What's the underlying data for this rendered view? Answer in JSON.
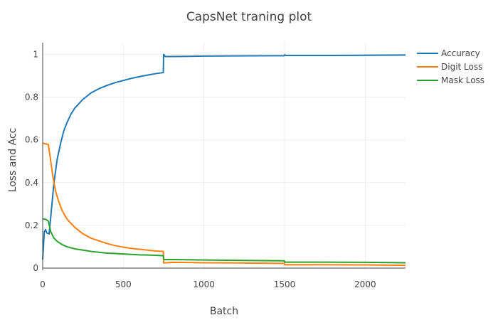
{
  "chart_data": {
    "type": "line",
    "title": "CapsNet traning plot",
    "xlabel": "Batch",
    "ylabel": "Loss and Acc",
    "xlim": [
      0,
      2250
    ],
    "ylim": [
      -0.01,
      1.055
    ],
    "x_ticks": [
      0,
      500,
      1000,
      1500,
      2000
    ],
    "y_ticks": [
      0,
      0.2,
      0.4,
      0.6,
      0.8,
      1
    ],
    "grid": true,
    "legend_position": "top-right",
    "series": [
      {
        "name": "Accuracy",
        "color": "#1f77b4",
        "points": [
          [
            0,
            0.04
          ],
          [
            10,
            0.17
          ],
          [
            18,
            0.18
          ],
          [
            25,
            0.165
          ],
          [
            40,
            0.16
          ],
          [
            55,
            0.28
          ],
          [
            70,
            0.4
          ],
          [
            90,
            0.51
          ],
          [
            110,
            0.58
          ],
          [
            130,
            0.64
          ],
          [
            150,
            0.68
          ],
          [
            175,
            0.72
          ],
          [
            200,
            0.75
          ],
          [
            250,
            0.79
          ],
          [
            300,
            0.82
          ],
          [
            350,
            0.84
          ],
          [
            400,
            0.855
          ],
          [
            450,
            0.868
          ],
          [
            500,
            0.878
          ],
          [
            550,
            0.888
          ],
          [
            600,
            0.896
          ],
          [
            650,
            0.903
          ],
          [
            700,
            0.91
          ],
          [
            748,
            0.915
          ],
          [
            750,
            1.0
          ],
          [
            760,
            0.99
          ],
          [
            780,
            0.99
          ],
          [
            900,
            0.991
          ],
          [
            1000,
            0.992
          ],
          [
            1200,
            0.993
          ],
          [
            1499,
            0.994
          ],
          [
            1500,
            0.998
          ],
          [
            1510,
            0.995
          ],
          [
            1800,
            0.995
          ],
          [
            2000,
            0.996
          ],
          [
            2250,
            0.997
          ]
        ]
      },
      {
        "name": "Digit Loss",
        "color": "#ff7f0e",
        "points": [
          [
            0,
            0.585
          ],
          [
            15,
            0.582
          ],
          [
            35,
            0.578
          ],
          [
            50,
            0.5
          ],
          [
            65,
            0.42
          ],
          [
            80,
            0.36
          ],
          [
            100,
            0.31
          ],
          [
            120,
            0.27
          ],
          [
            150,
            0.23
          ],
          [
            200,
            0.19
          ],
          [
            250,
            0.16
          ],
          [
            300,
            0.14
          ],
          [
            350,
            0.127
          ],
          [
            400,
            0.115
          ],
          [
            450,
            0.105
          ],
          [
            500,
            0.098
          ],
          [
            550,
            0.092
          ],
          [
            600,
            0.088
          ],
          [
            650,
            0.084
          ],
          [
            700,
            0.08
          ],
          [
            748,
            0.078
          ],
          [
            750,
            0.024
          ],
          [
            800,
            0.027
          ],
          [
            1000,
            0.025
          ],
          [
            1200,
            0.024
          ],
          [
            1499,
            0.022
          ],
          [
            1500,
            0.016
          ],
          [
            1700,
            0.016
          ],
          [
            2000,
            0.015
          ],
          [
            2250,
            0.013
          ]
        ]
      },
      {
        "name": "Mask Loss",
        "color": "#2ca02c",
        "points": [
          [
            0,
            0.23
          ],
          [
            20,
            0.228
          ],
          [
            35,
            0.22
          ],
          [
            50,
            0.17
          ],
          [
            70,
            0.14
          ],
          [
            90,
            0.125
          ],
          [
            120,
            0.11
          ],
          [
            150,
            0.1
          ],
          [
            200,
            0.09
          ],
          [
            250,
            0.084
          ],
          [
            300,
            0.078
          ],
          [
            350,
            0.074
          ],
          [
            400,
            0.07
          ],
          [
            450,
            0.068
          ],
          [
            500,
            0.066
          ],
          [
            550,
            0.064
          ],
          [
            600,
            0.062
          ],
          [
            650,
            0.061
          ],
          [
            700,
            0.06
          ],
          [
            748,
            0.058
          ],
          [
            750,
            0.04
          ],
          [
            800,
            0.04
          ],
          [
            1000,
            0.038
          ],
          [
            1200,
            0.036
          ],
          [
            1499,
            0.034
          ],
          [
            1500,
            0.028
          ],
          [
            1700,
            0.028
          ],
          [
            2000,
            0.027
          ],
          [
            2250,
            0.025
          ]
        ]
      }
    ]
  }
}
